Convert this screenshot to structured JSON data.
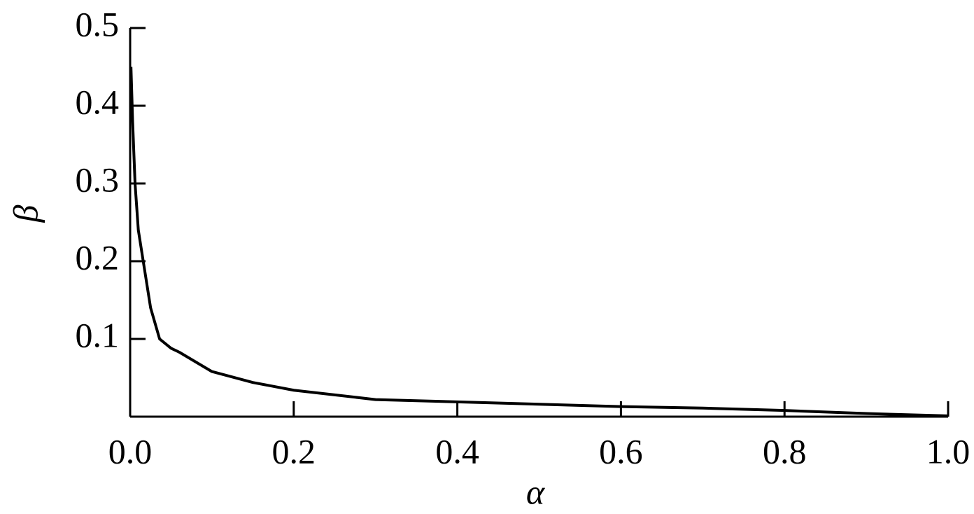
{
  "chart_data": {
    "type": "line",
    "x_label": "α",
    "y_label": "β",
    "x": [
      0.001,
      0.003,
      0.006,
      0.01,
      0.016,
      0.025,
      0.036,
      0.05,
      0.06,
      0.1,
      0.15,
      0.2,
      0.3,
      0.4,
      0.5,
      0.6,
      0.7,
      0.8,
      0.9,
      1.0
    ],
    "series": [
      {
        "name": "β",
        "color": "#000000",
        "values": [
          0.45,
          0.38,
          0.3,
          0.24,
          0.2,
          0.14,
          0.1,
          0.088,
          0.083,
          0.058,
          0.044,
          0.034,
          0.022,
          0.019,
          0.016,
          0.013,
          0.011,
          0.008,
          0.004,
          0.001
        ]
      }
    ],
    "xlim": [
      0,
      1.0
    ],
    "ylim": [
      0,
      0.5
    ],
    "xticks": [
      {
        "value": 0,
        "label": "0.0"
      },
      0.2,
      0.4,
      0.6,
      0.8,
      {
        "value": 1,
        "label": "1.0"
      }
    ],
    "yticks": [
      0.1,
      0.2,
      0.3,
      0.4,
      0.5
    ],
    "grid": false
  }
}
